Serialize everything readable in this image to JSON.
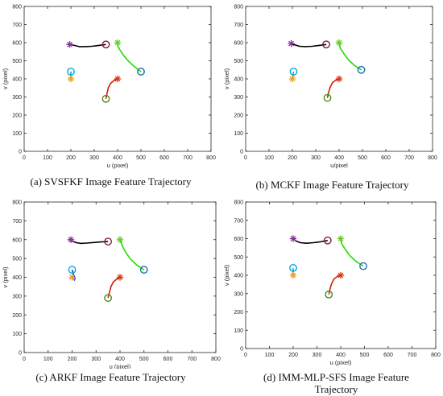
{
  "charts": [
    {
      "caption": "(a) SVSFKF Image Feature Trajectory",
      "chart_data": {
        "type": "line",
        "xlabel": "u (pixel)",
        "ylabel": "v (pixel)",
        "xlim": [
          0,
          800
        ],
        "ylim": [
          0,
          800
        ],
        "xticks": [
          0,
          100,
          200,
          300,
          400,
          500,
          600,
          700,
          800
        ],
        "yticks": [
          0,
          100,
          200,
          300,
          400,
          500,
          600,
          700,
          800
        ],
        "series": [
          {
            "color": "#000000",
            "start": [
              350,
              590
            ],
            "end": [
              195,
              590
            ],
            "values": [
              [
                350,
                590
              ],
              [
                320,
                585
              ],
              [
                290,
                580
              ],
              [
                260,
                578
              ],
              [
                235,
                578
              ],
              [
                215,
                585
              ],
              [
                200,
                590
              ],
              [
                195,
                590
              ]
            ]
          },
          {
            "color": "#22dd00",
            "start": [
              500,
              440
            ],
            "end": [
              400,
              600
            ],
            "values": [
              [
                500,
                440
              ],
              [
                470,
                470
              ],
              [
                445,
                500
              ],
              [
                425,
                530
              ],
              [
                410,
                560
              ],
              [
                400,
                585
              ],
              [
                400,
                600
              ]
            ]
          },
          {
            "color": "#cc2200",
            "start": [
              350,
              290
            ],
            "end": [
              400,
              400
            ],
            "values": [
              [
                350,
                290
              ],
              [
                355,
                320
              ],
              [
                360,
                350
              ],
              [
                370,
                375
              ],
              [
                385,
                392
              ],
              [
                400,
                400
              ]
            ]
          },
          {
            "color": "#1aa0d8",
            "start": [
              200,
              440
            ],
            "end": [
              200,
              400
            ],
            "values": [
              [
                200,
                440
              ],
              [
                200,
                425
              ],
              [
                200,
                410
              ],
              [
                200,
                400
              ]
            ]
          }
        ],
        "start_marker_colors": [
          "#8b1a3a",
          "#1a6fa8",
          "#4a8a1a",
          "#00aadd"
        ],
        "end_marker_colors": [
          "#8b2d9e",
          "#66cc22",
          "#dd3311",
          "#f0a020"
        ]
      }
    },
    {
      "caption": "(b) MCKF Image Feature Trajectory",
      "chart_data": {
        "type": "line",
        "xlabel": "u/pixel",
        "ylabel": "v (pixel)",
        "xlim": [
          0,
          800
        ],
        "ylim": [
          0,
          800
        ],
        "xticks": [
          0,
          100,
          200,
          300,
          400,
          500,
          600,
          700,
          800
        ],
        "yticks": [
          0,
          100,
          200,
          300,
          400,
          500,
          600,
          700,
          800
        ],
        "series": [
          {
            "color": "#000000",
            "start": [
              345,
              590
            ],
            "end": [
              195,
              595
            ],
            "values": [
              [
                345,
                590
              ],
              [
                315,
                585
              ],
              [
                285,
                580
              ],
              [
                255,
                578
              ],
              [
                230,
                580
              ],
              [
                210,
                588
              ],
              [
                195,
                595
              ]
            ]
          },
          {
            "color": "#22dd00",
            "start": [
              495,
              450
            ],
            "end": [
              400,
              600
            ],
            "values": [
              [
                495,
                450
              ],
              [
                465,
                475
              ],
              [
                440,
                505
              ],
              [
                420,
                540
              ],
              [
                405,
                570
              ],
              [
                400,
                600
              ]
            ]
          },
          {
            "color": "#cc2200",
            "start": [
              350,
              295
            ],
            "end": [
              400,
              400
            ],
            "values": [
              [
                350,
                295
              ],
              [
                355,
                325
              ],
              [
                362,
                355
              ],
              [
                372,
                380
              ],
              [
                388,
                395
              ],
              [
                400,
                400
              ]
            ]
          },
          {
            "color": "#1aa0d8",
            "start": [
              205,
              440
            ],
            "end": [
              200,
              400
            ],
            "values": [
              [
                205,
                440
              ],
              [
                203,
                425
              ],
              [
                201,
                410
              ],
              [
                200,
                400
              ]
            ]
          }
        ],
        "start_marker_colors": [
          "#8b1a3a",
          "#1a6fa8",
          "#4a8a1a",
          "#00aadd"
        ],
        "end_marker_colors": [
          "#8b2d9e",
          "#66cc22",
          "#dd3311",
          "#f0a020"
        ]
      }
    },
    {
      "caption": "(c) ARKF Image Feature Trajectory",
      "chart_data": {
        "type": "line",
        "xlabel": "u (pixel)",
        "ylabel": "v (pixel)",
        "xlim": [
          0,
          800
        ],
        "ylim": [
          0,
          800
        ],
        "xticks": [
          0,
          100,
          200,
          300,
          400,
          500,
          600,
          700,
          800
        ],
        "yticks": [
          0,
          100,
          200,
          300,
          400,
          500,
          600,
          700,
          800
        ],
        "series": [
          {
            "color": "#000000",
            "start": [
              350,
              590
            ],
            "end": [
              195,
              600
            ],
            "values": [
              [
                350,
                590
              ],
              [
                320,
                588
              ],
              [
                290,
                585
              ],
              [
                260,
                582
              ],
              [
                235,
                580
              ],
              [
                215,
                585
              ],
              [
                200,
                592
              ],
              [
                195,
                600
              ]
            ]
          },
          {
            "color": "#22dd00",
            "start": [
              500,
              440
            ],
            "end": [
              400,
              600
            ],
            "values": [
              [
                500,
                440
              ],
              [
                470,
                465
              ],
              [
                445,
                495
              ],
              [
                425,
                530
              ],
              [
                410,
                565
              ],
              [
                400,
                600
              ]
            ]
          },
          {
            "color": "#cc2200",
            "start": [
              350,
              290
            ],
            "end": [
              400,
              400
            ],
            "values": [
              [
                350,
                290
              ],
              [
                356,
                320
              ],
              [
                362,
                350
              ],
              [
                372,
                375
              ],
              [
                388,
                392
              ],
              [
                400,
                400
              ]
            ]
          },
          {
            "color": "#1f3dcc",
            "start": [
              200,
              440
            ],
            "end": [
              200,
              400
            ],
            "values": [
              [
                200,
                440
              ],
              [
                205,
                420
              ],
              [
                212,
                395
              ],
              [
                210,
                385
              ],
              [
                200,
                400
              ]
            ]
          }
        ],
        "start_marker_colors": [
          "#8b1a3a",
          "#1a6fa8",
          "#4a8a1a",
          "#00aadd"
        ],
        "end_marker_colors": [
          "#8b2d9e",
          "#66cc22",
          "#dd3311",
          "#f0a020"
        ]
      }
    },
    {
      "caption": "(d) IMM-MLP-SFS Image Feature Trajectory",
      "chart_data": {
        "type": "line",
        "xlabel": "u (pixel)",
        "ylabel": "v (pixel)",
        "xlim": [
          0,
          800
        ],
        "ylim": [
          0,
          800
        ],
        "xticks": [
          0,
          100,
          200,
          300,
          400,
          500,
          600,
          700,
          800
        ],
        "yticks": [
          0,
          100,
          200,
          300,
          400,
          500,
          600,
          700,
          800
        ],
        "series": [
          {
            "color": "#000000",
            "start": [
              345,
              590
            ],
            "end": [
              200,
              600
            ],
            "values": [
              [
                345,
                590
              ],
              [
                315,
                583
              ],
              [
                285,
                578
              ],
              [
                255,
                575
              ],
              [
                230,
                578
              ],
              [
                210,
                588
              ],
              [
                200,
                600
              ]
            ]
          },
          {
            "color": "#22dd00",
            "start": [
              495,
              450
            ],
            "end": [
              400,
              600
            ],
            "values": [
              [
                495,
                450
              ],
              [
                465,
                475
              ],
              [
                440,
                505
              ],
              [
                420,
                540
              ],
              [
                405,
                570
              ],
              [
                400,
                600
              ]
            ]
          },
          {
            "color": "#cc2200",
            "start": [
              350,
              295
            ],
            "end": [
              400,
              400
            ],
            "values": [
              [
                350,
                295
              ],
              [
                355,
                325
              ],
              [
                362,
                355
              ],
              [
                372,
                380
              ],
              [
                388,
                395
              ],
              [
                400,
                400
              ]
            ]
          },
          {
            "color": "#1aa0d8",
            "start": [
              200,
              440
            ],
            "end": [
              200,
              400
            ],
            "values": [
              [
                200,
                440
              ],
              [
                200,
                425
              ],
              [
                200,
                410
              ],
              [
                200,
                400
              ]
            ]
          }
        ],
        "start_marker_colors": [
          "#8b1a3a",
          "#1a6fa8",
          "#4a8a1a",
          "#00aadd"
        ],
        "end_marker_colors": [
          "#8b2d9e",
          "#66cc22",
          "#dd3311",
          "#f0a020"
        ]
      }
    }
  ]
}
